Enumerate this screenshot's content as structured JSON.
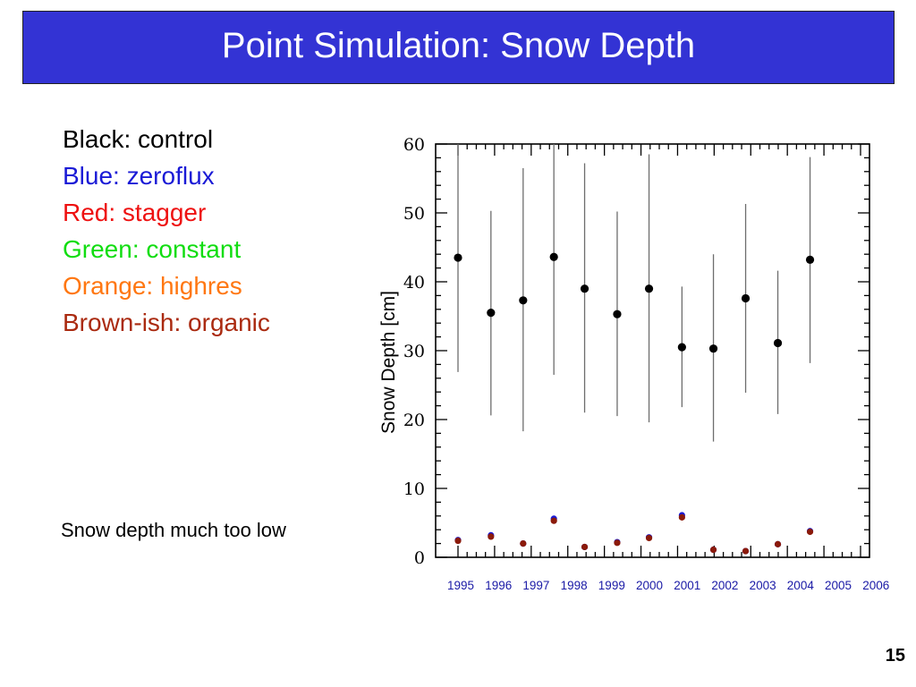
{
  "slide": {
    "title": "Point Simulation: Snow Depth",
    "page_number": "15",
    "note": "Snow depth much too low"
  },
  "legend": [
    {
      "text": "Black: control",
      "color": "#000000"
    },
    {
      "text": "Blue: zeroflux",
      "color": "#1a1ad6"
    },
    {
      "text": "Red: stagger",
      "color": "#ee1111"
    },
    {
      "text": "Green: constant",
      "color": "#11dd11"
    },
    {
      "text": "Orange: highres",
      "color": "#ff7711"
    },
    {
      "text": "Brown-ish: organic",
      "color": "#aa2a10"
    }
  ],
  "chart_data": {
    "type": "scatter",
    "ylabel": "Snow Depth [cm]",
    "xlabel": "",
    "ylim": [
      0,
      60
    ],
    "yticks": [
      0,
      10,
      20,
      30,
      40,
      50,
      60
    ],
    "xticks": [
      "1995",
      "1996",
      "1997",
      "1998",
      "1999",
      "2000",
      "2001",
      "2002",
      "2003",
      "2004",
      "2005",
      "2006"
    ],
    "xlim": [
      1995,
      2006
    ],
    "series": [
      {
        "color": "#000000",
        "x": [
          1995.0,
          1995.9,
          1996.78,
          1997.62,
          1998.46,
          1999.35,
          2000.22,
          2001.12,
          2001.98,
          2002.86,
          2003.74,
          2004.62
        ],
        "y": [
          43.5,
          35.5,
          37.3,
          43.6,
          39.0,
          35.3,
          39.0,
          30.5,
          30.3,
          37.6,
          31.1,
          43.2
        ],
        "error_low": [
          26.9,
          20.6,
          18.3,
          26.5,
          21.0,
          20.5,
          19.6,
          21.8,
          16.8,
          23.9,
          20.8,
          28.2
        ],
        "error_high": [
          60.0,
          50.3,
          56.5,
          60.0,
          57.2,
          50.2,
          58.5,
          39.3,
          44.0,
          51.3,
          41.6,
          58.1
        ]
      },
      {
        "color": "#1a1ad6",
        "x": [
          1995.0,
          1995.9,
          1996.78,
          1997.62,
          1998.46,
          1999.35,
          2000.22,
          2001.12,
          2001.98,
          2002.86,
          2003.74,
          2004.62
        ],
        "y": [
          2.5,
          3.2,
          2.0,
          5.6,
          1.5,
          2.2,
          2.9,
          6.1,
          1.1,
          0.9,
          1.9,
          3.8
        ]
      },
      {
        "color": "#8b1a0a",
        "x": [
          1995.0,
          1995.9,
          1996.78,
          1997.62,
          1998.46,
          1999.35,
          2000.22,
          2001.12,
          2001.98,
          2002.86,
          2003.74,
          2004.62
        ],
        "y": [
          2.4,
          3.0,
          2.0,
          5.3,
          1.5,
          2.1,
          2.8,
          5.8,
          1.1,
          0.9,
          1.9,
          3.7
        ]
      }
    ]
  }
}
